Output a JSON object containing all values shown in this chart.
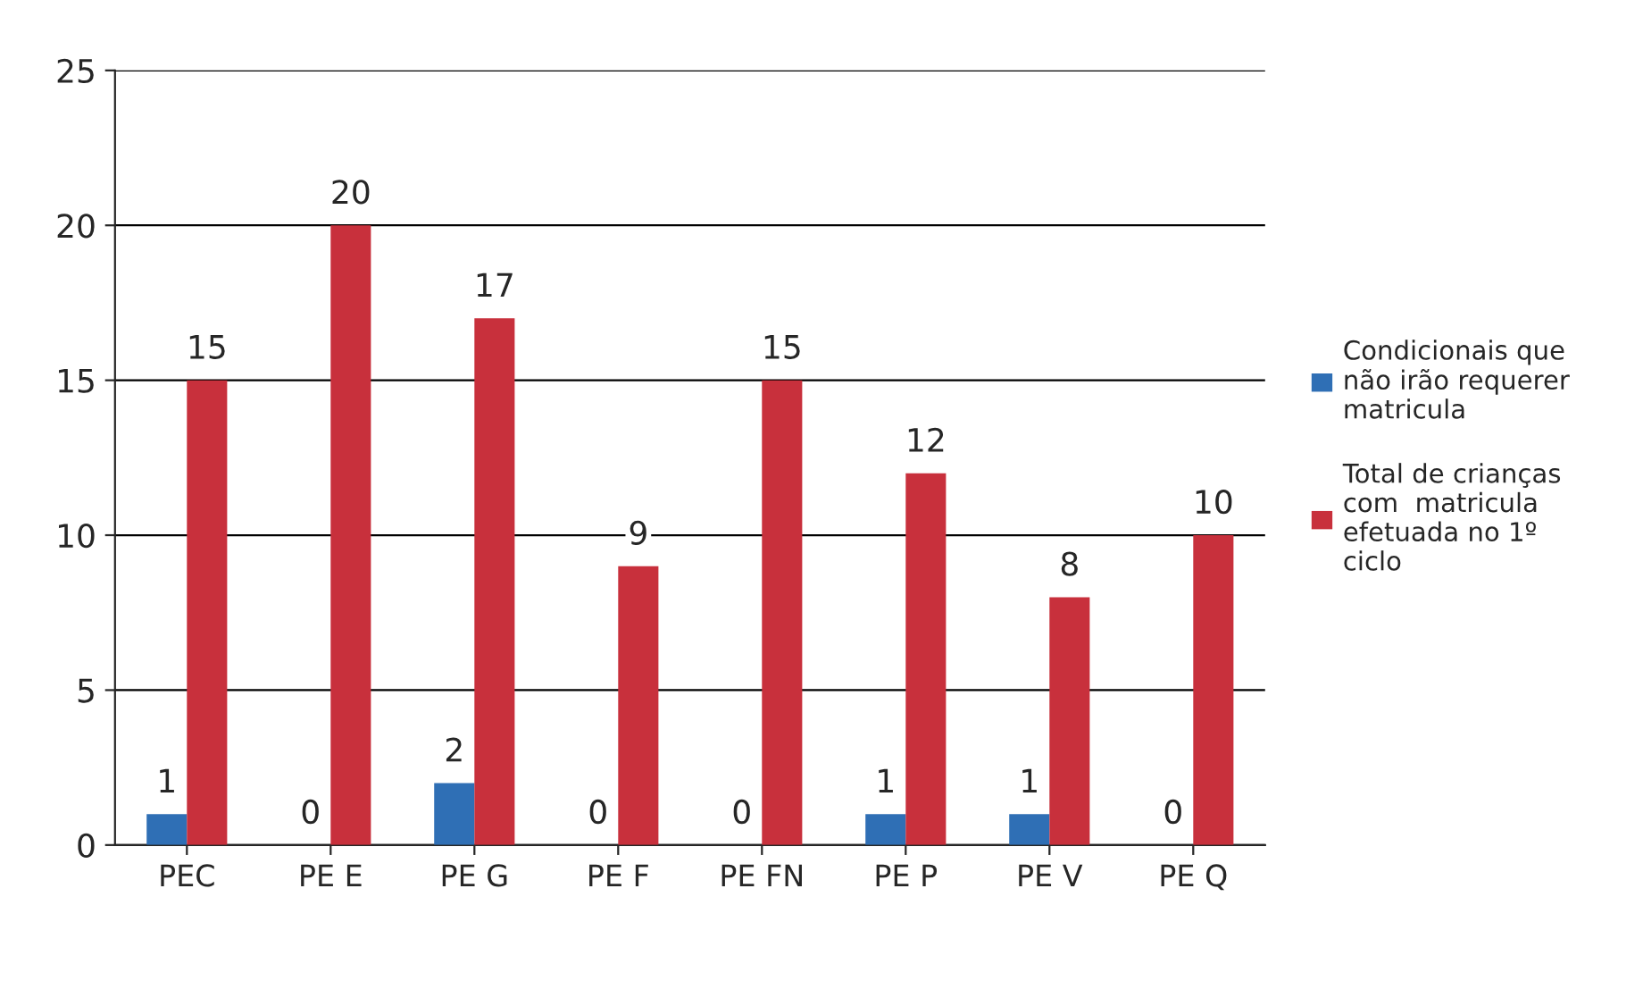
{
  "chart_data": {
    "type": "bar",
    "categories": [
      "PEC",
      "PE E",
      "PE G",
      "PE F",
      "PE FN",
      "PE P",
      "PE V",
      "PE Q"
    ],
    "series": [
      {
        "name": "Condicionais que não irão requerer matricula",
        "color": "#2f6fb5",
        "values": [
          1,
          0,
          2,
          0,
          0,
          1,
          1,
          0
        ]
      },
      {
        "name": "Total de crianças com  matricula efetuada no 1º ciclo",
        "color": "#c8303c",
        "values": [
          15,
          20,
          17,
          9,
          15,
          12,
          8,
          10
        ]
      }
    ],
    "ylim": [
      0,
      25
    ],
    "yticks": [
      0,
      5,
      10,
      15,
      20,
      25
    ],
    "grid": "y",
    "legend": "right",
    "data_labels": true
  }
}
